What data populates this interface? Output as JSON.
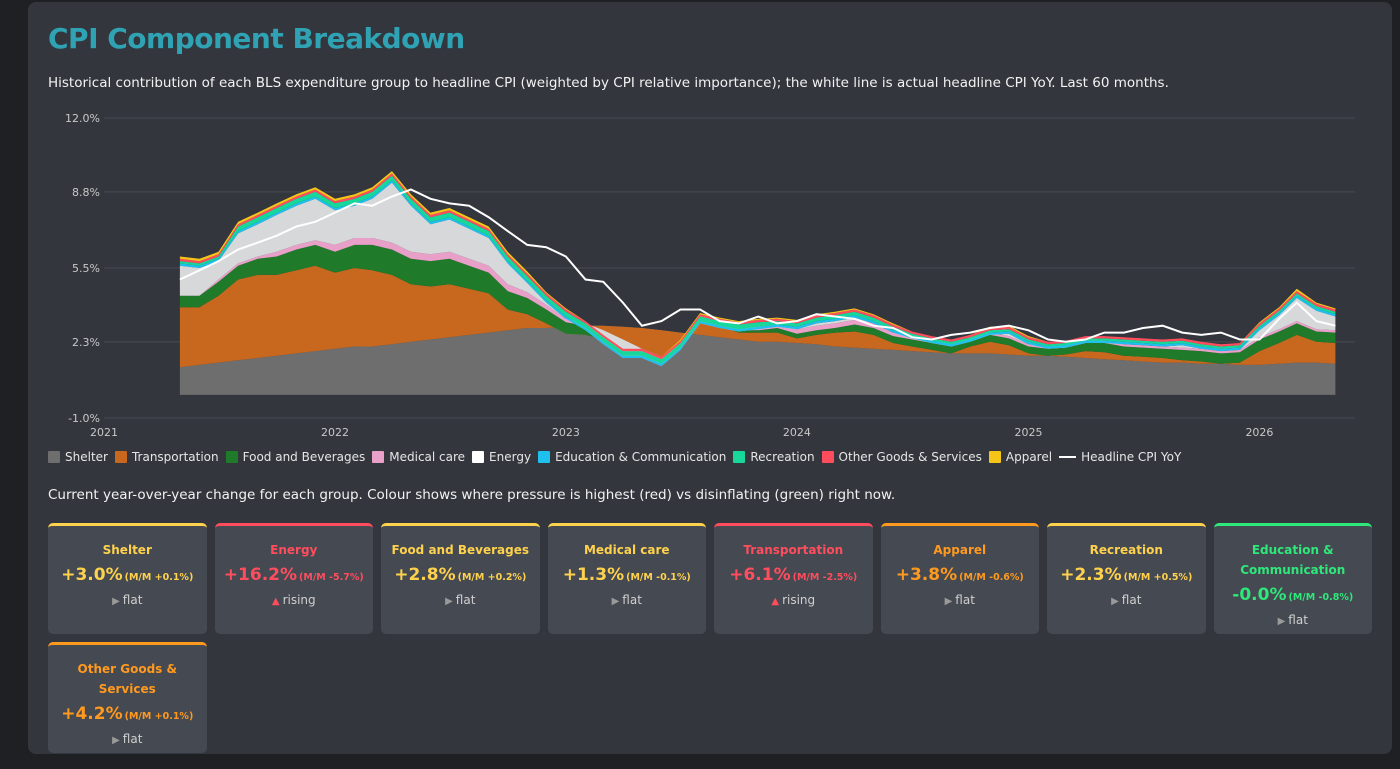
{
  "title": "CPI Component Breakdown",
  "subtitle": "Historical contribution of each BLS expenditure group to headline CPI (weighted by CPI relative importance); the white line is actual headline CPI YoY. Last 60 months.",
  "cards_description": "Current year-over-year change for each group. Colour shows where pressure is highest (red) vs disinflating (green) right now.",
  "colors": {
    "background": "#1e2024",
    "panel": "#33363d",
    "title": "#2fa3b3",
    "red": "#ff4d5e",
    "orange": "#ff9a1f",
    "yellow": "#ffd24d",
    "green": "#2ee87a"
  },
  "legend": [
    {
      "label": "Shelter",
      "color": "#6e6e6e",
      "kind": "swatch"
    },
    {
      "label": "Transportation",
      "color": "#c8681e",
      "kind": "swatch"
    },
    {
      "label": "Food and Beverages",
      "color": "#1f7a2a",
      "kind": "swatch"
    },
    {
      "label": "Medical care",
      "color": "#e8a0c8",
      "kind": "swatch"
    },
    {
      "label": "Energy",
      "color": "#ffffff",
      "kind": "swatch"
    },
    {
      "label": "Education & Communication",
      "color": "#1ec0ee",
      "kind": "swatch"
    },
    {
      "label": "Recreation",
      "color": "#17d89a",
      "kind": "swatch"
    },
    {
      "label": "Other Goods & Services",
      "color": "#ff4d5e",
      "kind": "swatch"
    },
    {
      "label": "Apparel",
      "color": "#f5c518",
      "kind": "swatch"
    },
    {
      "label": "Headline CPI YoY",
      "color": "#ffffff",
      "kind": "line"
    }
  ],
  "cards": [
    {
      "name": "Shelter",
      "pct": "+3.0%",
      "mm": "(M/M +0.1%)",
      "trend": "flat",
      "trend_icon": "triangle-right-icon",
      "status": "yellow"
    },
    {
      "name": "Energy",
      "pct": "+16.2%",
      "mm": "(M/M -5.7%)",
      "trend": "rising",
      "trend_icon": "triangle-up-icon",
      "status": "red"
    },
    {
      "name": "Food and Beverages",
      "pct": "+2.8%",
      "mm": "(M/M +0.2%)",
      "trend": "flat",
      "trend_icon": "triangle-right-icon",
      "status": "yellow"
    },
    {
      "name": "Medical care",
      "pct": "+1.3%",
      "mm": "(M/M -0.1%)",
      "trend": "flat",
      "trend_icon": "triangle-right-icon",
      "status": "yellow"
    },
    {
      "name": "Transportation",
      "pct": "+6.1%",
      "mm": "(M/M -2.5%)",
      "trend": "rising",
      "trend_icon": "triangle-up-icon",
      "status": "red"
    },
    {
      "name": "Apparel",
      "pct": "+3.8%",
      "mm": "(M/M -0.6%)",
      "trend": "flat",
      "trend_icon": "triangle-right-icon",
      "status": "orange"
    },
    {
      "name": "Recreation",
      "pct": "+2.3%",
      "mm": "(M/M +0.5%)",
      "trend": "flat",
      "trend_icon": "triangle-right-icon",
      "status": "yellow"
    },
    {
      "name": "Education & Communication",
      "pct": "-0.0%",
      "mm": "(M/M -0.8%)",
      "trend": "flat",
      "trend_icon": "triangle-right-icon",
      "status": "green"
    },
    {
      "name": "Other Goods & Services",
      "pct": "+4.2%",
      "mm": "(M/M +0.1%)",
      "trend": "flat",
      "trend_icon": "triangle-right-icon",
      "status": "orange"
    }
  ],
  "chart_data": {
    "type": "area",
    "stacked": true,
    "y_ticks": [
      "12.0%",
      "8.8%",
      "5.5%",
      "2.3%",
      "-1.0%"
    ],
    "ylim": [
      -1.0,
      12.0
    ],
    "x_ticks": [
      "2021",
      "2022",
      "2023",
      "2024",
      "2025",
      "2026"
    ],
    "x": [
      "2021-05",
      "2021-06",
      "2021-07",
      "2021-08",
      "2021-09",
      "2021-10",
      "2021-11",
      "2021-12",
      "2022-01",
      "2022-02",
      "2022-03",
      "2022-04",
      "2022-05",
      "2022-06",
      "2022-07",
      "2022-08",
      "2022-09",
      "2022-10",
      "2022-11",
      "2022-12",
      "2023-01",
      "2023-02",
      "2023-03",
      "2023-04",
      "2023-05",
      "2023-06",
      "2023-07",
      "2023-08",
      "2023-09",
      "2023-10",
      "2023-11",
      "2023-12",
      "2024-01",
      "2024-02",
      "2024-03",
      "2024-04",
      "2024-05",
      "2024-06",
      "2024-07",
      "2024-08",
      "2024-09",
      "2024-10",
      "2024-11",
      "2024-12",
      "2025-01",
      "2025-02",
      "2025-03",
      "2025-04",
      "2025-05",
      "2025-06",
      "2025-07",
      "2025-08",
      "2025-09",
      "2025-10",
      "2025-11",
      "2025-12",
      "2026-01",
      "2026-02",
      "2026-03",
      "2026-04",
      "2026-05"
    ],
    "series": [
      {
        "name": "Shelter",
        "color": "#6e6e6e",
        "values": [
          1.2,
          1.3,
          1.4,
          1.5,
          1.6,
          1.7,
          1.8,
          1.9,
          2.0,
          2.1,
          2.1,
          2.2,
          2.3,
          2.4,
          2.5,
          2.6,
          2.7,
          2.8,
          2.9,
          2.9,
          2.95,
          3.0,
          3.0,
          2.95,
          2.9,
          2.8,
          2.7,
          2.6,
          2.5,
          2.4,
          2.3,
          2.3,
          2.25,
          2.2,
          2.1,
          2.05,
          2.0,
          1.95,
          1.9,
          1.85,
          1.8,
          1.8,
          1.8,
          1.75,
          1.7,
          1.7,
          1.65,
          1.6,
          1.55,
          1.5,
          1.45,
          1.4,
          1.4,
          1.35,
          1.35,
          1.3,
          1.3,
          1.35,
          1.4,
          1.4,
          1.35
        ]
      },
      {
        "name": "Transportation",
        "color": "#c8681e",
        "values": [
          2.6,
          2.5,
          2.9,
          3.5,
          3.6,
          3.5,
          3.6,
          3.7,
          3.3,
          3.4,
          3.3,
          3.0,
          2.5,
          2.3,
          2.3,
          2.0,
          1.7,
          0.9,
          0.6,
          0.2,
          -0.3,
          -0.4,
          -0.6,
          -0.8,
          -1.1,
          -1.3,
          -0.6,
          0.6,
          0.5,
          0.3,
          0.4,
          0.4,
          0.2,
          0.4,
          0.6,
          0.7,
          0.6,
          0.3,
          0.2,
          0.1,
          0.0,
          0.3,
          0.5,
          0.4,
          0.1,
          0.0,
          0.1,
          0.3,
          0.3,
          0.2,
          0.2,
          0.2,
          0.1,
          0.1,
          0.0,
          0.1,
          0.6,
          0.9,
          1.2,
          0.9,
          0.9
        ]
      },
      {
        "name": "Food and Beverages",
        "color": "#1f7a2a",
        "values": [
          0.5,
          0.5,
          0.6,
          0.6,
          0.7,
          0.8,
          0.9,
          0.9,
          0.9,
          1.0,
          1.1,
          1.1,
          1.1,
          1.1,
          1.1,
          1.0,
          0.9,
          0.8,
          0.7,
          0.6,
          0.5,
          0.4,
          0.3,
          0.2,
          0.2,
          0.15,
          0.1,
          0.1,
          0.1,
          0.1,
          0.1,
          0.2,
          0.2,
          0.2,
          0.2,
          0.3,
          0.3,
          0.3,
          0.3,
          0.3,
          0.3,
          0.3,
          0.3,
          0.3,
          0.3,
          0.3,
          0.3,
          0.35,
          0.4,
          0.4,
          0.4,
          0.4,
          0.45,
          0.45,
          0.45,
          0.45,
          0.5,
          0.5,
          0.5,
          0.45,
          0.45
        ]
      },
      {
        "name": "Medical care",
        "color": "#e8a0c8",
        "values": [
          0.0,
          0.0,
          0.1,
          0.1,
          0.1,
          0.2,
          0.2,
          0.2,
          0.3,
          0.3,
          0.3,
          0.3,
          0.3,
          0.3,
          0.3,
          0.3,
          0.3,
          0.3,
          0.25,
          0.2,
          0.15,
          0.1,
          0.1,
          0.05,
          0.0,
          0.0,
          0.05,
          0.1,
          0.1,
          0.15,
          0.15,
          0.15,
          0.2,
          0.2,
          0.2,
          0.2,
          0.2,
          0.15,
          0.15,
          0.1,
          0.1,
          0.1,
          0.1,
          0.1,
          0.1,
          0.1,
          0.1,
          0.1,
          0.1,
          0.1,
          0.1,
          0.1,
          0.1,
          0.1,
          0.1,
          0.1,
          0.1,
          0.1,
          0.1,
          0.1,
          0.1
        ]
      },
      {
        "name": "Energy",
        "color": "#d7d8da",
        "values": [
          1.3,
          1.2,
          0.8,
          1.3,
          1.4,
          1.6,
          1.7,
          1.8,
          1.5,
          1.4,
          1.7,
          2.6,
          2.0,
          1.3,
          1.4,
          1.3,
          1.2,
          0.9,
          0.4,
          0.1,
          0.0,
          -0.3,
          -0.6,
          -0.8,
          -0.4,
          -0.4,
          -0.3,
          -0.3,
          -0.3,
          -0.2,
          -0.1,
          -0.1,
          0.0,
          0.1,
          0.1,
          0.1,
          0.0,
          0.0,
          -0.1,
          -0.1,
          -0.1,
          -0.2,
          -0.1,
          0.1,
          0.0,
          -0.1,
          -0.1,
          -0.1,
          -0.1,
          0.0,
          0.0,
          0.0,
          0.1,
          0.0,
          0.0,
          0.0,
          0.3,
          0.6,
          1.0,
          0.8,
          0.6
        ]
      },
      {
        "name": "Education & Communication",
        "color": "#1ec0ee",
        "values": [
          0.1,
          0.1,
          0.1,
          0.1,
          0.1,
          0.1,
          0.1,
          0.1,
          0.1,
          0.1,
          0.1,
          0.1,
          0.1,
          0.1,
          0.1,
          0.1,
          0.1,
          0.1,
          0.1,
          0.1,
          0.1,
          0.1,
          0.1,
          0.1,
          0.1,
          0.1,
          0.1,
          0.1,
          0.1,
          0.1,
          0.1,
          0.1,
          0.1,
          0.1,
          0.1,
          0.1,
          0.1,
          0.1,
          0.1,
          0.1,
          0.1,
          0.1,
          0.1,
          0.1,
          0.1,
          0.1,
          0.1,
          0.1,
          0.1,
          0.1,
          0.1,
          0.1,
          0.1,
          0.1,
          0.1,
          0.1,
          0.1,
          0.1,
          0.1,
          0.1,
          0.1
        ]
      },
      {
        "name": "Recreation",
        "color": "#17d89a",
        "values": [
          0.1,
          0.1,
          0.1,
          0.2,
          0.2,
          0.2,
          0.2,
          0.2,
          0.2,
          0.2,
          0.2,
          0.2,
          0.2,
          0.2,
          0.2,
          0.2,
          0.2,
          0.2,
          0.2,
          0.2,
          0.2,
          0.2,
          0.2,
          0.2,
          0.2,
          0.2,
          0.2,
          0.2,
          0.2,
          0.2,
          0.2,
          0.15,
          0.15,
          0.15,
          0.15,
          0.15,
          0.15,
          0.15,
          0.1,
          0.1,
          0.1,
          0.1,
          0.1,
          0.1,
          0.1,
          0.1,
          0.1,
          0.1,
          0.1,
          0.1,
          0.1,
          0.1,
          0.1,
          0.1,
          0.1,
          0.1,
          0.1,
          0.1,
          0.1,
          0.1,
          0.1
        ]
      },
      {
        "name": "Other Goods & Services",
        "color": "#ff4d5e",
        "values": [
          0.1,
          0.1,
          0.1,
          0.1,
          0.1,
          0.1,
          0.1,
          0.1,
          0.1,
          0.1,
          0.1,
          0.1,
          0.1,
          0.1,
          0.1,
          0.1,
          0.1,
          0.1,
          0.1,
          0.1,
          0.1,
          0.1,
          0.1,
          0.1,
          0.1,
          0.1,
          0.1,
          0.1,
          0.1,
          0.1,
          0.1,
          0.1,
          0.1,
          0.1,
          0.1,
          0.1,
          0.1,
          0.1,
          0.1,
          0.1,
          0.1,
          0.1,
          0.1,
          0.1,
          0.1,
          0.1,
          0.1,
          0.1,
          0.1,
          0.1,
          0.1,
          0.1,
          0.1,
          0.1,
          0.1,
          0.1,
          0.1,
          0.1,
          0.1,
          0.1,
          0.1
        ]
      },
      {
        "name": "Apparel",
        "color": "#f5c518",
        "values": [
          0.1,
          0.1,
          0.1,
          0.1,
          0.1,
          0.1,
          0.1,
          0.1,
          0.1,
          0.1,
          0.1,
          0.1,
          0.1,
          0.1,
          0.1,
          0.1,
          0.1,
          0.1,
          0.1,
          0.05,
          0.05,
          0.0,
          0.0,
          0.0,
          0.0,
          0.0,
          0.05,
          0.05,
          0.05,
          0.05,
          0.05,
          0.05,
          0.05,
          0.05,
          0.05,
          0.05,
          0.05,
          0.05,
          0.0,
          0.0,
          0.0,
          0.0,
          0.05,
          0.05,
          0.05,
          0.0,
          0.0,
          0.0,
          0.0,
          0.0,
          0.0,
          0.0,
          0.0,
          0.0,
          0.0,
          0.0,
          0.05,
          0.05,
          0.1,
          0.05,
          0.05
        ]
      }
    ],
    "headline": {
      "name": "Headline CPI YoY",
      "color": "#ffffff",
      "values": [
        5.0,
        5.4,
        5.8,
        6.3,
        6.6,
        6.9,
        7.3,
        7.5,
        7.9,
        8.3,
        8.2,
        8.6,
        8.9,
        8.5,
        8.3,
        8.2,
        7.7,
        7.1,
        6.5,
        6.4,
        6.0,
        5.0,
        4.9,
        4.0,
        3.0,
        3.2,
        3.7,
        3.7,
        3.2,
        3.1,
        3.4,
        3.1,
        3.2,
        3.5,
        3.4,
        3.3,
        3.0,
        2.9,
        2.5,
        2.4,
        2.6,
        2.7,
        2.9,
        3.0,
        2.8,
        2.4,
        2.3,
        2.4,
        2.7,
        2.7,
        2.9,
        3.0,
        2.7,
        2.6,
        2.7,
        2.4,
        2.4,
        3.3,
        4.0,
        3.2,
        3.0
      ]
    }
  }
}
